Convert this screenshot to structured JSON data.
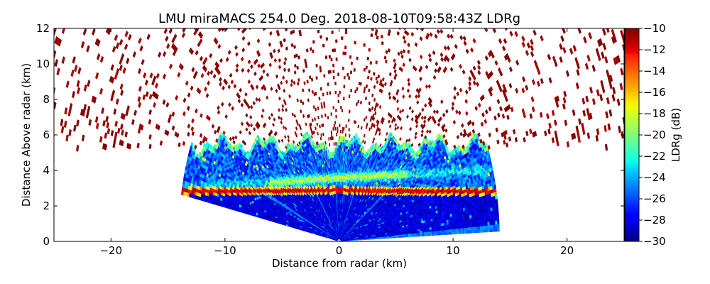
{
  "chart_data": {
    "type": "heatmap",
    "title": "LMU miraMACS 254.0 Deg. 2018-08-10T09:58:43Z  LDRg",
    "xlabel": "Distance from radar (km)",
    "ylabel": "Distance Above radar  (km)",
    "xlim": [
      -25,
      25
    ],
    "ylim": [
      0,
      12
    ],
    "xticks": [
      -20,
      -10,
      0,
      10,
      20
    ],
    "xtick_labels": [
      "−20",
      "−10",
      "0",
      "10",
      "20"
    ],
    "yticks": [
      0,
      2,
      4,
      6,
      8,
      10,
      12
    ],
    "ytick_labels": [
      "0",
      "2",
      "4",
      "6",
      "8",
      "10",
      "12"
    ],
    "grid": false,
    "colorbar": {
      "label": "LDRg (dB)",
      "range": [
        -30,
        -10
      ],
      "ticks": [
        -30,
        -28,
        -26,
        -24,
        -22,
        -20,
        -18,
        -16,
        -14,
        -12,
        -10
      ],
      "tick_labels": [
        "−30",
        "−28",
        "−26",
        "−24",
        "−22",
        "−20",
        "−18",
        "−16",
        "−14",
        "−12",
        "−10"
      ],
      "colormap": "jet"
    },
    "scan": {
      "elevation_range_deg": [
        2.3,
        169.2
      ],
      "max_range_km": 14,
      "melting_layer_height_km": 2.8,
      "cloud_top_km": 5.5,
      "sparse_echo_top_km": 12
    }
  }
}
